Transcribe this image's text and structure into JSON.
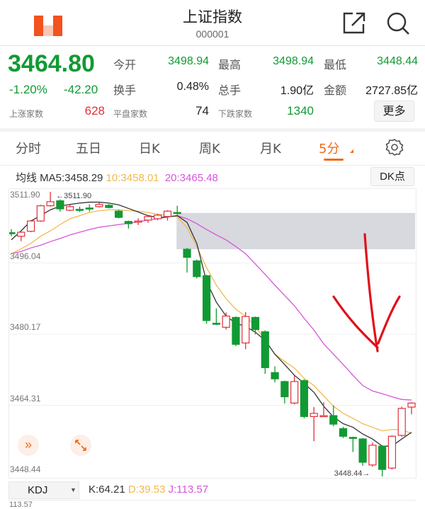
{
  "header": {
    "title": "上证指数",
    "code": "000001",
    "logo_icon": "app-logo-icon",
    "share_icon": "share-icon",
    "search_icon": "search-icon"
  },
  "quote": {
    "price": "3464.80",
    "change_pct": "-1.20%",
    "change": "-42.20",
    "open_label": "今开",
    "open": "3498.94",
    "high_label": "最高",
    "high": "3498.94",
    "low_label": "最低",
    "low": "3448.44",
    "turnover_label": "换手",
    "turnover": "0.48%",
    "volume_label": "总手",
    "volume": "1.90亿",
    "amount_label": "金额",
    "amount": "2727.85亿",
    "up_label": "上涨家数",
    "up": "628",
    "flat_label": "平盘家数",
    "flat": "74",
    "down_label": "下跌家数",
    "down": "1340",
    "more_label": "更多"
  },
  "tabs": [
    {
      "label": "分时"
    },
    {
      "label": "五日"
    },
    {
      "label": "日K"
    },
    {
      "label": "周K"
    },
    {
      "label": "月K"
    },
    {
      "label": "5分",
      "active": true
    }
  ],
  "settings_icon": "gear-icon",
  "ma_row": {
    "prefix": "均线 MA5:3458.29",
    "ma10": "10:3458.01",
    "ma20": "20:3465.48",
    "dk_label": "DK点"
  },
  "colors": {
    "up": "#e0303a",
    "down": "#119a33",
    "ma5": "#333333",
    "ma10": "#f2b94e",
    "ma20": "#d655d9",
    "accent": "#f06a1e"
  },
  "chart_data": {
    "type": "candlestick",
    "y_ticks": [
      "3511.90",
      "3496.04",
      "3480.17",
      "3464.31",
      "3448.44"
    ],
    "ylim": [
      3448.44,
      3511.9
    ],
    "max_marker": "←3511.90",
    "min_marker": "3448.44→",
    "highlight_band": {
      "from_index": 17,
      "low": 3499.1,
      "high": 3507.2
    },
    "candles": [
      [
        3502.8,
        3502.7,
        3503.6,
        3502.0
      ],
      [
        3502.0,
        3502.9,
        3503.0,
        3500.9
      ],
      [
        3503.1,
        3505.4,
        3505.6,
        3502.9
      ],
      [
        3505.4,
        3508.8,
        3509.0,
        3505.2
      ],
      [
        3508.8,
        3509.7,
        3511.9,
        3508.6
      ],
      [
        3509.9,
        3508.1,
        3510.2,
        3507.5
      ],
      [
        3507.8,
        3508.6,
        3509.0,
        3507.6
      ],
      [
        3508.0,
        3507.95,
        3508.6,
        3507.4
      ],
      [
        3508.3,
        3508.25,
        3509.1,
        3507.5
      ],
      [
        3508.6,
        3509.1,
        3509.5,
        3508.4
      ],
      [
        3508.9,
        3508.4,
        3509.2,
        3508.2
      ],
      [
        3507.6,
        3506.2,
        3507.9,
        3506.0
      ],
      [
        3505.3,
        3504.8,
        3505.5,
        3503.7
      ],
      [
        3505.35,
        3505.4,
        3506.0,
        3504.5
      ],
      [
        3505.6,
        3506.4,
        3506.6,
        3505.0
      ],
      [
        3505.9,
        3506.7,
        3507.0,
        3505.6
      ],
      [
        3506.4,
        3507.6,
        3507.8,
        3505.5
      ],
      [
        3507.3,
        3507.1,
        3508.8,
        3506.8
      ],
      [
        3499.1,
        3497.3,
        3499.4,
        3493.9
      ],
      [
        3496.5,
        3493.0,
        3496.8,
        3492.6
      ],
      [
        3493.2,
        3483.2,
        3493.4,
        3482.5
      ],
      [
        3482.6,
        3482.4,
        3485.9,
        3482.2
      ],
      [
        3481.7,
        3484.2,
        3485.0,
        3481.2
      ],
      [
        3483.9,
        3477.9,
        3484.1,
        3477.5
      ],
      [
        3478.2,
        3484.1,
        3485.1,
        3476.8
      ],
      [
        3483.9,
        3481.2,
        3484.1,
        3480.1
      ],
      [
        3480.7,
        3472.7,
        3481.0,
        3471.3
      ],
      [
        3471.6,
        3470.2,
        3473.0,
        3469.4
      ],
      [
        3469.6,
        3466.2,
        3469.8,
        3464.7
      ],
      [
        3464.8,
        3469.6,
        3471.0,
        3464.5
      ],
      [
        3469.8,
        3461.8,
        3470.1,
        3461.4
      ],
      [
        3461.8,
        3462.5,
        3463.9,
        3456.3
      ],
      [
        3461.9,
        3462.0,
        3465.0,
        3461.8
      ],
      [
        3462.0,
        3460.1,
        3464.3,
        3459.6
      ],
      [
        3459.1,
        3457.4,
        3459.5,
        3457.0
      ],
      [
        3457.15,
        3457.1,
        3457.3,
        3453.9
      ],
      [
        3456.8,
        3451.6,
        3457.0,
        3450.8
      ],
      [
        3451.0,
        3455.4,
        3456.0,
        3450.6
      ],
      [
        3455.2,
        3450.0,
        3455.4,
        3448.44
      ],
      [
        3450.3,
        3457.4,
        3457.6,
        3450.0
      ],
      [
        3457.6,
        3463.6,
        3464.0,
        3457.3
      ],
      [
        3463.9,
        3464.8,
        3465.0,
        3462.3
      ]
    ],
    "ma5": [
      3501.2,
      3503.2,
      3505.4,
      3506.6,
      3507.9,
      3508.7,
      3509.1,
      3509.4,
      3509.6,
      3509.6,
      3509.4,
      3509.0,
      3508.2,
      3507.4,
      3506.6,
      3506.2,
      3506.3,
      3506.6,
      3505.1,
      3500.4,
      3491.9,
      3487.3,
      3484.2,
      3482.6,
      3481.9,
      3480.6,
      3478.8,
      3475.7,
      3473.4,
      3471.0,
      3469.2,
      3467.2,
      3464.1,
      3461.7,
      3460.2,
      3459.4,
      3457.9,
      3456.8,
      3455.2,
      3455.2,
      3456.8,
      3458.29
    ],
    "ma10": [
      3498.1,
      3499.2,
      3500.4,
      3502.0,
      3503.2,
      3504.6,
      3505.9,
      3506.6,
      3507.3,
      3507.7,
      3507.9,
      3507.9,
      3507.7,
      3507.6,
      3507.3,
      3506.9,
      3506.6,
      3506.3,
      3503.9,
      3499.7,
      3495.0,
      3491.1,
      3488.1,
      3485.7,
      3484.2,
      3481.9,
      3478.8,
      3475.7,
      3474.1,
      3472.6,
      3470.3,
      3468.7,
      3466.4,
      3464.1,
      3462.5,
      3461.4,
      3460.2,
      3459.4,
      3458.6,
      3458.9,
      3458.9,
      3458.01
    ],
    "ma20": [
      3498.1,
      3498.6,
      3499.4,
      3500.0,
      3500.8,
      3501.5,
      3502.3,
      3502.9,
      3503.5,
      3504.0,
      3504.3,
      3504.6,
      3504.9,
      3505.2,
      3505.6,
      3505.9,
      3506.3,
      3506.6,
      3505.9,
      3504.8,
      3503.5,
      3502.3,
      3501.2,
      3499.7,
      3498.1,
      3495.8,
      3493.5,
      3491.1,
      3488.8,
      3486.5,
      3483.7,
      3481.1,
      3478.0,
      3475.7,
      3473.4,
      3471.0,
      3468.7,
      3467.5,
      3466.9,
      3466.2,
      3465.6,
      3465.48
    ]
  },
  "indicator": {
    "select": "KDJ",
    "k": "K:64.21",
    "d": "D:39.53",
    "j": "J:113.57",
    "top_tick": "113.57"
  }
}
